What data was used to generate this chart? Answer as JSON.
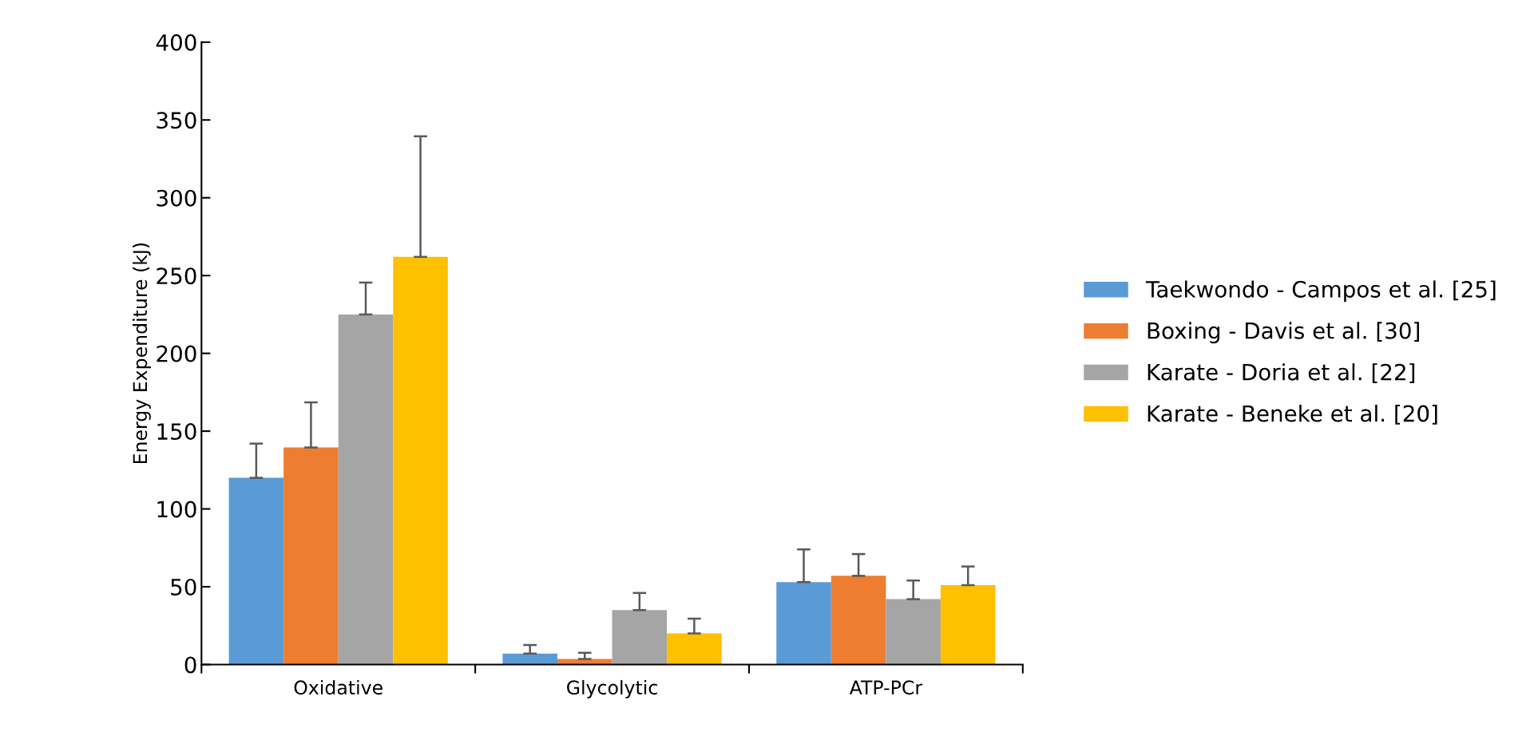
{
  "chart_data": {
    "type": "bar",
    "ylabel": "Energy Expenditure (kJ)",
    "categories": [
      "Oxidative",
      "Glycolytic",
      "ATP-PCr"
    ],
    "ylim": [
      0,
      400
    ],
    "yticks": [
      0,
      50,
      100,
      150,
      200,
      250,
      300,
      350,
      400
    ],
    "grid": false,
    "legend": "right",
    "series": [
      {
        "name": "Taekwondo - Campos et al. [25]",
        "color": "#5b9bd5",
        "values": [
          120,
          7,
          53
        ],
        "errors": [
          [
            120,
            142
          ],
          [
            7,
            12.5
          ],
          [
            53,
            74
          ]
        ]
      },
      {
        "name": "Boxing - Davis et al. [30]",
        "color": "#ed7d31",
        "values": [
          139.5,
          3.5,
          57
        ],
        "errors": [
          [
            139.5,
            168.5
          ],
          [
            3.5,
            7.5
          ],
          [
            57,
            71
          ]
        ]
      },
      {
        "name": "Karate - Doria et al. [22]",
        "color": "#a5a5a5",
        "values": [
          225,
          35,
          42
        ],
        "errors": [
          [
            225,
            245.5
          ],
          [
            35,
            46
          ],
          [
            42,
            54
          ]
        ]
      },
      {
        "name": "Karate - Beneke et al. [20]",
        "color": "#ffc000",
        "values": [
          262,
          20,
          51
        ],
        "errors": [
          [
            262,
            339.5
          ],
          [
            20,
            29.5
          ],
          [
            51,
            63
          ]
        ]
      }
    ]
  }
}
